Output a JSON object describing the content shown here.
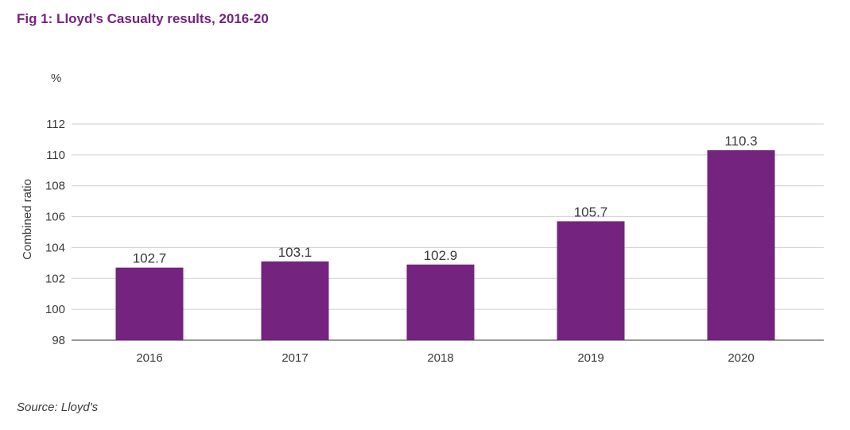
{
  "header": {
    "title": "Fig 1: Lloyd’s Casualty results, 2016-20"
  },
  "unit_label": "%",
  "footer": {
    "source": "Source:  Lloyd's"
  },
  "colors": {
    "title": "#74237f",
    "bar": "#74237f",
    "gridline": "#cfcfcf",
    "baseline": "#9a9a9a",
    "text": "#3a3a3a"
  },
  "chart_data": {
    "type": "bar",
    "categories": [
      "2016",
      "2017",
      "2018",
      "2019",
      "2020"
    ],
    "values": [
      102.7,
      103.1,
      102.9,
      105.7,
      110.3
    ],
    "data_labels": [
      "102.7",
      "103.1",
      "102.9",
      "105.7",
      "110.3"
    ],
    "ylabel": "Combined ratio",
    "ylim": [
      98,
      112
    ],
    "yticks": [
      98,
      100,
      102,
      104,
      106,
      108,
      110,
      112
    ],
    "grid": true
  }
}
